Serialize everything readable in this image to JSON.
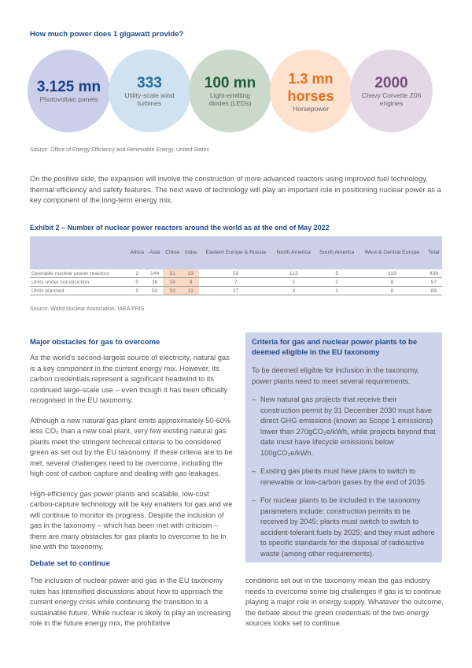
{
  "infographic": {
    "title": "How much power does 1 gigawatt provide?",
    "items": [
      {
        "value": "3.125 mn",
        "label": "Photovoltaic panels",
        "bg": "#cbcfe9",
        "color": "#1d3f8a"
      },
      {
        "value": "333",
        "label": "Utility-scale wind turbines",
        "bg": "#d0e2ef",
        "color": "#1f6d9e"
      },
      {
        "value": "100 mn",
        "label": "Light-emitting diodes (LEDs)",
        "bg": "#cbd9ca",
        "color": "#1c5e35"
      },
      {
        "value": "1.3 mn horses",
        "label": "Horsepower",
        "bg": "#fde2cf",
        "color": "#e0701f"
      },
      {
        "value": "2000",
        "label": "Chevy Corvette Z06 engines",
        "bg": "#e4d8e7",
        "color": "#7a4a80"
      }
    ],
    "source": "Source: Office of Energy Efficiency and Renewable Energy, United States"
  },
  "intro": "On the positive side, the expansion will involve the construction of more advanced reactors using improved fuel technology, thermal efficiency and safety features. The next wave of technology will play an important role in positioning nuclear power as a key component of the long-term energy mix.",
  "exhibit": {
    "title": "Exhibit 2 – Number of nuclear power reactors around the world as at the end of May 2022",
    "headers": [
      "",
      "Africa",
      "Asia",
      "China",
      "India",
      "Eastern Europe & Russia",
      "North America",
      "South America",
      "West & Central Europe",
      "Total"
    ],
    "rows": [
      [
        "Operable nuclear power reactors",
        "2",
        "144",
        "51",
        "23",
        "53",
        "113",
        "5",
        "119",
        "436"
      ],
      [
        "Units under construction",
        "0",
        "38",
        "19",
        "8",
        "7",
        "2",
        "2",
        "8",
        "57"
      ],
      [
        "Units planned",
        "0",
        "50",
        "33",
        "12",
        "27",
        "3",
        "1",
        "8",
        "89"
      ]
    ],
    "source": "Source: World Nuclear Association, IAEA PRIS"
  },
  "left": {
    "heading": "Major obstacles for gas to overcome",
    "p1": "As the world's second-largest source of electricity, natural gas is a key component in the current energy mix. However, its carbon credentials represent a significant headwind to its continued large-scale use – even though it has been officially recognised in the EU taxonomy.",
    "p2": "Although a new natural gas plant emits approximately 50-60% less CO₂ than a new coal plant, very few existing natural gas plants meet the stringent technical criteria to be considered green as set out by the EU taxonomy. If these criteria are to be met, several challenges need to be overcome, including the high cost of carbon capture and dealing with gas leakages.",
    "p3": "High-efficiency gas power plants and scalable, low-cost carbon-capture technology will be key enablers for gas and we will continue to monitor its progress. Despite the inclusion of gas in the taxonomy – which has been met with criticism – there are many obstacles for gas plants to overcome to be in line with the taxonomy.",
    "heading2": "Debate set to continue"
  },
  "box": {
    "heading": "Criteria for gas and nuclear power plants to be deemed eligible in the EU taxonomy",
    "intro": "To be deemed eligible for inclusion in the taxonomy, power plants need to meet several requirements.",
    "bullets": [
      "New natural gas projects that receive their construction permit by 31 December 2030 must have direct GHG emissions (known as Scope 1 emissions) lower than 270gCO₂e/kWh, while projects beyond that date must have lifecycle emissions below 100gCO₂e/kWh.",
      "Existing gas plants must have plans to switch to renewable or low-carbon gases by the end of 2035",
      "For nuclear plants to be included in the taxonomy parameters include: construction permits to be received by 2045; plants must switch to switch to accident-tolerant fuels by 2025; and they must adhere to specific standards for the disposal of radioactive waste (among other requirements)."
    ],
    "dash": "–"
  },
  "bottom": {
    "left": "The inclusion of nuclear power and gas in the EU taxonomy rules has intensified discussions about how to approach the current energy crisis while continuing the transition to a sustainable future. While nuclear is likely to play an increasing role in the future energy mix, the prohibitive",
    "right": "conditions set out in the taxonomy mean the gas industry needs to overcome some big challenges if gas is to continue playing a major role in energy supply. Whatever the outcome, the debate about the green credentials of the two energy sources looks set to continue."
  }
}
